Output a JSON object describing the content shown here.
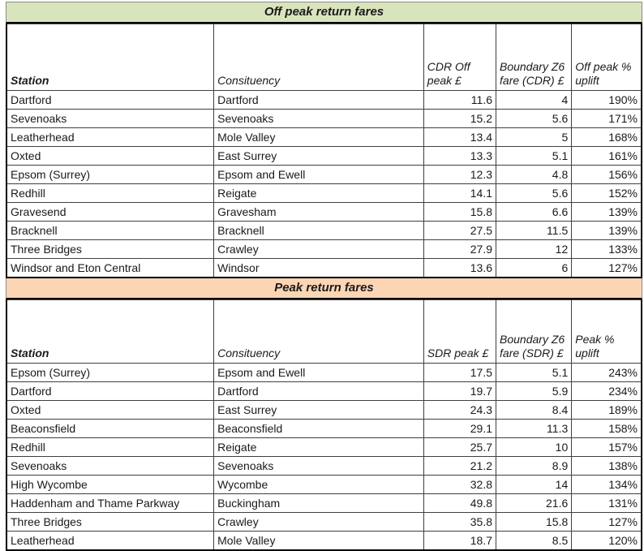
{
  "chart_data": [
    {
      "type": "table",
      "title": "Off peak return fares",
      "title_bg": "#d8e4bc",
      "columns": [
        "Station",
        "Consituency",
        "CDR Off peak £",
        "Boundary Z6 fare (CDR) £",
        "Off peak % uplift"
      ],
      "col_align": [
        "left",
        "left",
        "right",
        "right",
        "right"
      ],
      "rows": [
        [
          "Dartford",
          "Dartford",
          "11.6",
          "4",
          "190%"
        ],
        [
          "Sevenoaks",
          "Sevenoaks",
          "15.2",
          "5.6",
          "171%"
        ],
        [
          "Leatherhead",
          "Mole Valley",
          "13.4",
          "5",
          "168%"
        ],
        [
          "Oxted",
          "East Surrey",
          "13.3",
          "5.1",
          "161%"
        ],
        [
          "Epsom (Surrey)",
          "Epsom and Ewell",
          "12.3",
          "4.8",
          "156%"
        ],
        [
          "Redhill",
          "Reigate",
          "14.1",
          "5.6",
          "152%"
        ],
        [
          "Gravesend",
          "Gravesham",
          "15.8",
          "6.6",
          "139%"
        ],
        [
          "Bracknell",
          "Bracknell",
          "27.5",
          "11.5",
          "139%"
        ],
        [
          "Three Bridges",
          "Crawley",
          "27.9",
          "12",
          "133%"
        ],
        [
          "Windsor and Eton Central",
          "Windsor",
          "13.6",
          "6",
          "127%"
        ]
      ]
    },
    {
      "type": "table",
      "title": "Peak return fares",
      "title_bg": "#fcd5b4",
      "columns": [
        "Station",
        "Consituency",
        "SDR peak £",
        "Boundary Z6 fare (SDR) £",
        "Peak % uplift"
      ],
      "col_align": [
        "left",
        "left",
        "right",
        "right",
        "right"
      ],
      "rows": [
        [
          "Epsom (Surrey)",
          "Epsom and Ewell",
          "17.5",
          "5.1",
          "243%"
        ],
        [
          "Dartford",
          "Dartford",
          "19.7",
          "5.9",
          "234%"
        ],
        [
          "Oxted",
          "East Surrey",
          "24.3",
          "8.4",
          "189%"
        ],
        [
          "Beaconsfield",
          "Beaconsfield",
          "29.1",
          "11.3",
          "158%"
        ],
        [
          "Redhill",
          "Reigate",
          "25.7",
          "10",
          "157%"
        ],
        [
          "Sevenoaks",
          "Sevenoaks",
          "21.2",
          "8.9",
          "138%"
        ],
        [
          "High Wycombe",
          "Wycombe",
          "32.8",
          "14",
          "134%"
        ],
        [
          "Haddenham and Thame Parkway",
          "Buckingham",
          "49.8",
          "21.6",
          "131%"
        ],
        [
          "Three Bridges",
          "Crawley",
          "35.8",
          "15.8",
          "127%"
        ],
        [
          "Leatherhead",
          "Mole Valley",
          "18.7",
          "8.5",
          "120%"
        ]
      ]
    }
  ]
}
